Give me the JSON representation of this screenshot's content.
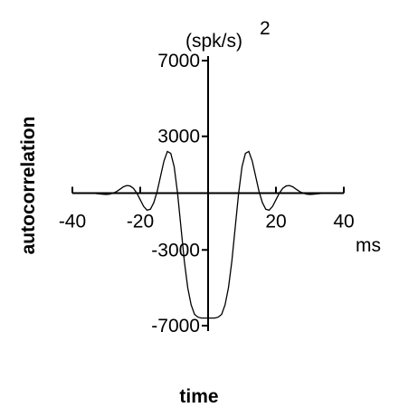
{
  "chart_data": {
    "type": "line",
    "y_label": "autocorrelation",
    "x_label": "time",
    "x_unit": "ms",
    "y_unit": "(spk/s)",
    "y_unit_exponent": "2",
    "x": [
      -40,
      -39,
      -38,
      -37,
      -36,
      -35,
      -34,
      -33,
      -32,
      -31,
      -30,
      -29,
      -28,
      -27,
      -26,
      -25,
      -24,
      -23,
      -22,
      -21,
      -20,
      -19,
      -18,
      -17,
      -16,
      -15,
      -14,
      -13,
      -12,
      -11,
      -10,
      -9,
      -8,
      -7,
      -6,
      -5,
      -4,
      -3,
      -2,
      -1,
      0,
      1,
      2,
      3,
      4,
      5,
      6,
      7,
      8,
      9,
      10,
      11,
      12,
      13,
      14,
      15,
      16,
      17,
      18,
      19,
      20,
      21,
      22,
      23,
      24,
      25,
      26,
      27,
      28,
      29,
      30,
      31,
      32,
      33,
      34,
      35,
      36,
      37,
      38,
      39,
      40
    ],
    "series": [
      {
        "color": "#000000",
        "values": [
          0,
          0,
          0,
          0,
          0,
          0,
          0,
          -20,
          -40,
          -60,
          -70,
          -50,
          0,
          80,
          200,
          330,
          400,
          380,
          250,
          0,
          -350,
          -700,
          -900,
          -850,
          -500,
          100,
          900,
          1700,
          2200,
          2100,
          1400,
          0,
          -1800,
          -3600,
          -5000,
          -5900,
          -6400,
          -6550,
          -6600,
          -6600,
          -6600,
          -6600,
          -6600,
          -6550,
          -6400,
          -5900,
          -5000,
          -3600,
          -1800,
          0,
          1400,
          2100,
          2200,
          1700,
          900,
          100,
          -500,
          -850,
          -900,
          -700,
          -350,
          0,
          250,
          380,
          400,
          330,
          200,
          80,
          0,
          -50,
          -70,
          -60,
          -40,
          -20,
          0,
          0,
          0,
          0,
          0,
          0,
          0
        ]
      }
    ],
    "xlim": [
      -40,
      40
    ],
    "ylim": [
      -7000,
      7000
    ],
    "xticks": [
      -40,
      -20,
      20,
      40
    ],
    "yticks": [
      -7000,
      -3000,
      3000,
      7000
    ]
  }
}
